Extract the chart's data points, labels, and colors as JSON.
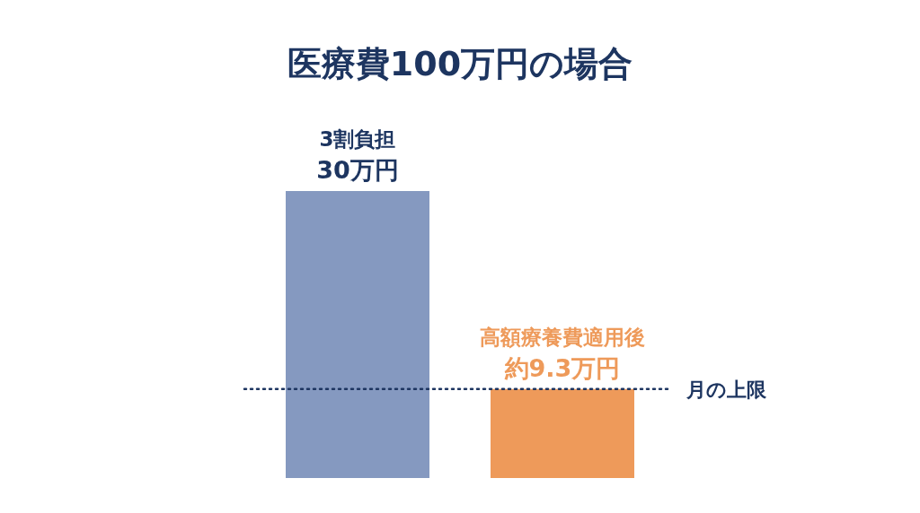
{
  "chart_data": {
    "type": "bar",
    "title": "医療費100万円の場合",
    "categories": [
      "3割負担",
      "高額療養費適用後"
    ],
    "values": [
      30,
      9.3
    ],
    "colors": [
      "#8599c0",
      "#ee9a5a"
    ],
    "value_labels": [
      "30万円",
      "約9.3万円"
    ],
    "ref_lines": [
      {
        "axis": "y",
        "value": 9.3,
        "label": "月の上限",
        "color": "#1d3560",
        "line_style": "dotted"
      }
    ]
  }
}
